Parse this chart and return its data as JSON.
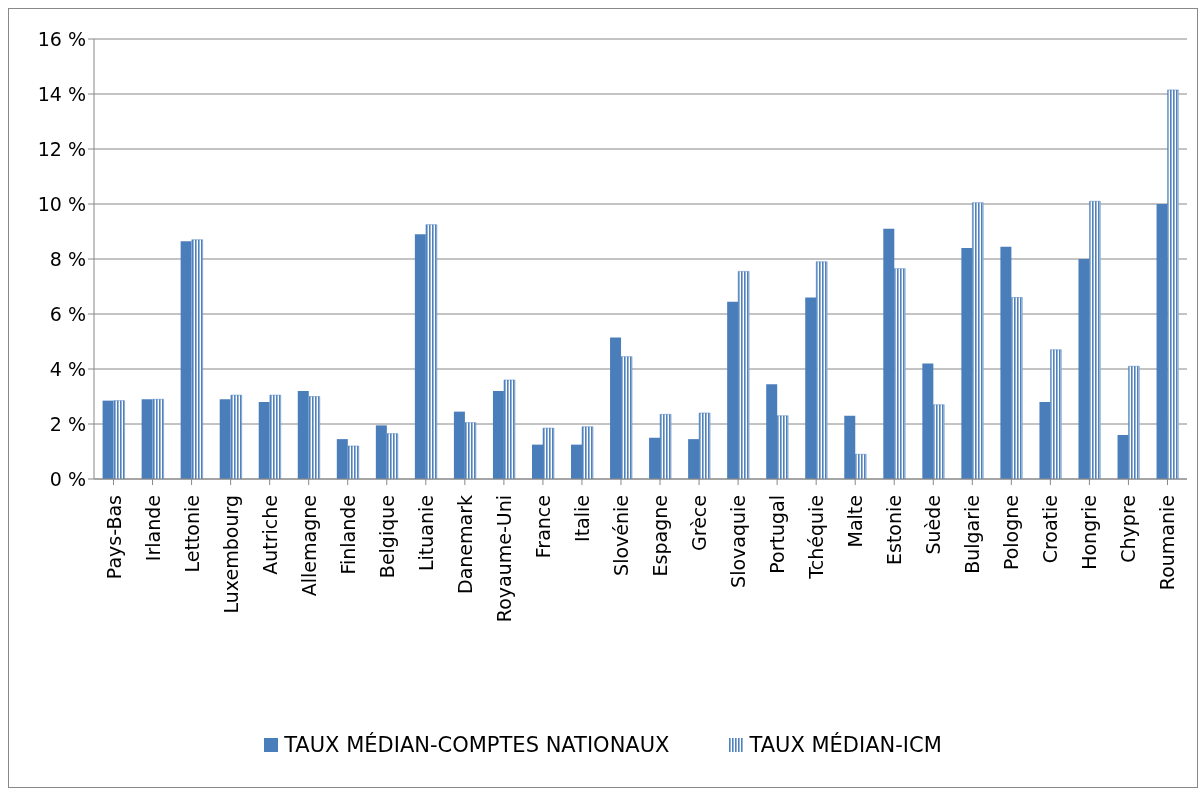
{
  "chart_data": {
    "type": "bar",
    "categories": [
      "Pays-Bas",
      "Irlande",
      "Lettonie",
      "Luxembourg",
      "Autriche",
      "Allemagne",
      "Finlande",
      "Belgique",
      "Lituanie",
      "Danemark",
      "Royaume-Uni",
      "France",
      "Italie",
      "Slovénie",
      "Espagne",
      "Grèce",
      "Slovaquie",
      "Portugal",
      "Tchéquie",
      "Malte",
      "Estonie",
      "Suède",
      "Bulgarie",
      "Pologne",
      "Croatie",
      "Hongrie",
      "Chypre",
      "Roumanie"
    ],
    "series": [
      {
        "name": "TAUX MÉDIAN-COMPTES NATIONAUX",
        "color": "#4a7ebb",
        "values": [
          2.85,
          2.9,
          8.65,
          2.9,
          2.8,
          3.2,
          1.45,
          1.95,
          8.9,
          2.45,
          3.2,
          1.25,
          1.25,
          5.15,
          1.5,
          1.45,
          6.45,
          3.45,
          6.6,
          2.3,
          9.1,
          4.2,
          8.4,
          8.45,
          2.8,
          8.0,
          1.6,
          10.0
        ]
      },
      {
        "name": "TAUX MÉDIAN-ICM",
        "color": "#4f81bd",
        "values": [
          2.85,
          2.9,
          8.7,
          3.05,
          3.05,
          3.0,
          1.2,
          1.65,
          9.25,
          2.05,
          3.6,
          1.85,
          1.9,
          4.45,
          2.35,
          2.4,
          7.55,
          2.3,
          7.9,
          0.9,
          7.65,
          2.7,
          10.05,
          6.6,
          4.7,
          10.1,
          4.1,
          14.15
        ]
      }
    ],
    "ylim": [
      0,
      16
    ],
    "yticks": [
      {
        "value": 0,
        "label": "0 %"
      },
      {
        "value": 2,
        "label": "2 %"
      },
      {
        "value": 4,
        "label": "4 %"
      },
      {
        "value": 6,
        "label": "6 %"
      },
      {
        "value": 8,
        "label": "8 %"
      },
      {
        "value": 10,
        "label": "10 %"
      },
      {
        "value": 12,
        "label": "12 %"
      },
      {
        "value": 14,
        "label": "14 %"
      },
      {
        "value": 16,
        "label": "16 %"
      }
    ],
    "grid": "y",
    "legend": "bottom"
  }
}
